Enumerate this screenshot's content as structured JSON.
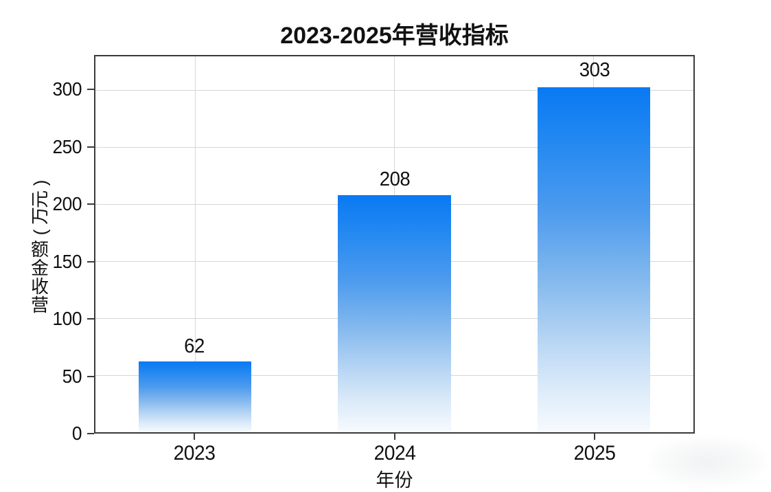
{
  "chart_data": {
    "type": "bar",
    "title": "2023-2025年营收指标",
    "xlabel": "年份",
    "ylabel": "营收金额(万元)",
    "categories": [
      "2023",
      "2024",
      "2025"
    ],
    "values": [
      62,
      208,
      303
    ],
    "value_labels": [
      "62",
      "208",
      "303"
    ],
    "yticks": [
      0,
      50,
      100,
      150,
      200,
      250,
      300
    ],
    "ylim": [
      0,
      330
    ],
    "grid": true,
    "grid_color": "#d6d6d6",
    "axis_color": "#3a3a3a",
    "text_color": "#111111",
    "legend": "none",
    "bar_gradient_stops": [
      [
        "#0979f3",
        "0%"
      ],
      [
        "#2489f1",
        "16%"
      ],
      [
        "#4d9bee",
        "36%"
      ],
      [
        "#84b9ee",
        "56%"
      ],
      [
        "#b3d3f3",
        "72%"
      ],
      [
        "#d9e9f9",
        "86%"
      ],
      [
        "#f7fafd",
        "100%"
      ]
    ]
  },
  "ylabel_vertical": [
    {
      "ch": ")",
      "rotated": true
    },
    {
      "ch": "元",
      "rotated": true
    },
    {
      "ch": "万",
      "rotated": true
    },
    {
      "ch": "(",
      "rotated": true
    },
    {
      "ch": "额",
      "rotated": false
    },
    {
      "ch": "金",
      "rotated": false
    },
    {
      "ch": "收",
      "rotated": false
    },
    {
      "ch": "营",
      "rotated": false
    }
  ],
  "watermark": {
    "visible": true
  }
}
